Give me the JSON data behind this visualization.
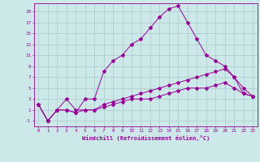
{
  "xlabel": "Windchill (Refroidissement éolien,°C)",
  "ylabel": "",
  "bg_color": "#cce8e8",
  "line_color": "#990099",
  "xlim": [
    -0.5,
    23.5
  ],
  "ylim": [
    -2,
    20.5
  ],
  "xticks": [
    0,
    1,
    2,
    3,
    4,
    5,
    6,
    7,
    8,
    9,
    10,
    11,
    12,
    13,
    14,
    15,
    16,
    17,
    18,
    19,
    20,
    21,
    22,
    23
  ],
  "yticks": [
    -1,
    1,
    3,
    5,
    7,
    9,
    11,
    13,
    15,
    17,
    19
  ],
  "grid_color": "#aacccc",
  "series": {
    "line1_x": [
      0,
      1,
      2,
      3,
      4,
      5,
      6,
      7,
      8,
      9,
      10,
      11,
      12,
      13,
      14,
      15,
      16,
      17,
      18,
      19,
      20,
      21,
      22,
      23
    ],
    "line1_y": [
      2,
      -1,
      1,
      1,
      0.5,
      3,
      3,
      8,
      10,
      11,
      13,
      14,
      16,
      18,
      19.5,
      20,
      17,
      14,
      11,
      10,
      9,
      7,
      4,
      3.5
    ],
    "line2_x": [
      0,
      1,
      2,
      3,
      4,
      5,
      6,
      7,
      8,
      9,
      10,
      11,
      12,
      13,
      14,
      15,
      16,
      17,
      18,
      19,
      20,
      21,
      22,
      23
    ],
    "line2_y": [
      2,
      -1,
      1,
      3,
      1,
      1,
      1,
      2,
      2.5,
      3,
      3.5,
      4,
      4.5,
      5,
      5.5,
      6,
      6.5,
      7,
      7.5,
      8,
      8.5,
      7,
      5,
      3.5
    ],
    "line3_x": [
      0,
      1,
      2,
      3,
      4,
      5,
      6,
      7,
      8,
      9,
      10,
      11,
      12,
      13,
      14,
      15,
      16,
      17,
      18,
      19,
      20,
      21,
      22,
      23
    ],
    "line3_y": [
      2,
      -1,
      1,
      1,
      0.5,
      1,
      1,
      1.5,
      2,
      2.5,
      3,
      3,
      3,
      3.5,
      4,
      4.5,
      5,
      5,
      5,
      5.5,
      6,
      5,
      4,
      3.5
    ]
  }
}
